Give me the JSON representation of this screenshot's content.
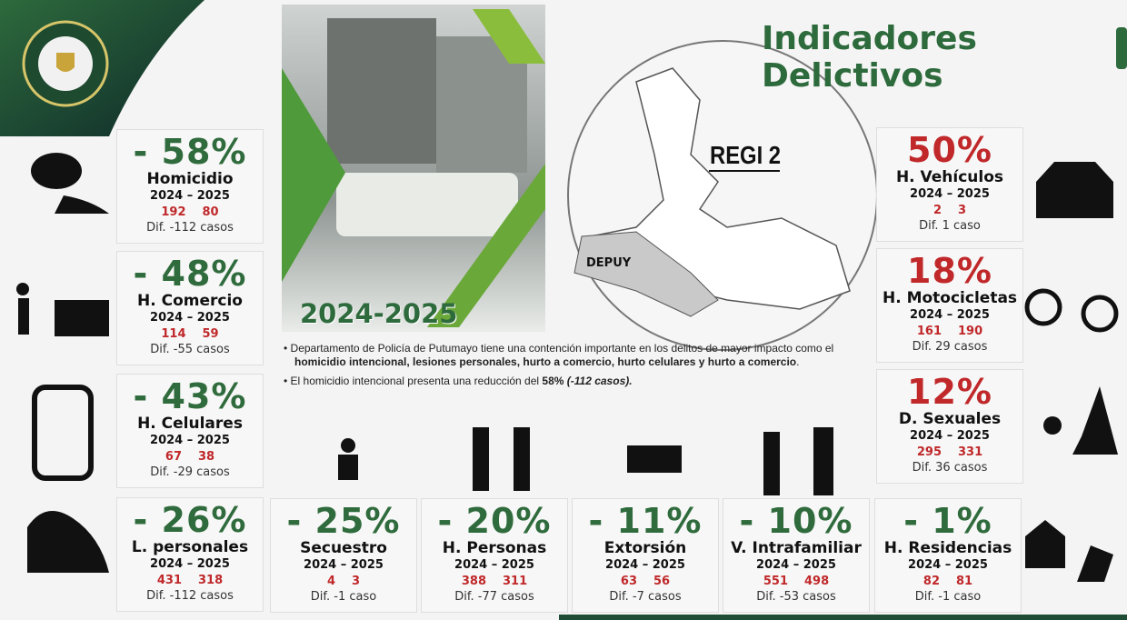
{
  "header": {
    "title": "Indicadores Delictivos"
  },
  "photo": {
    "label": "2024-2025"
  },
  "map": {
    "region_label": "REGI 2",
    "area_label": "DEPUY"
  },
  "bullets": [
    [
      {
        "text": "Departamento de Policía de Putumayo tiene una contención importante en los delitos de mayor impacto como el "
      },
      {
        "text": "homicidio intencional, lesiones personales, hurto a comercio, hurto celulares y hurto a comercio",
        "bold": true
      },
      {
        "text": "."
      }
    ],
    [
      {
        "text": "El homicidio intencional presenta una reducción del "
      },
      {
        "text": "58%",
        "bold": true
      },
      {
        "text": " (-112 casos).",
        "bold": true,
        "italic": true
      }
    ]
  ],
  "cards": [
    {
      "change": "- 58%",
      "name": "Homicidio",
      "period": "2024 – 2025",
      "values": [
        192,
        80
      ],
      "diff": "Dif. -112 casos",
      "color": "#2f6b3c"
    },
    {
      "change": "- 48%",
      "name": "H. Comercio",
      "period": "2024 – 2025",
      "values": [
        114,
        59
      ],
      "diff": "Dif. -55 casos",
      "color": "#2f6b3c"
    },
    {
      "change": "- 43%",
      "name": "H. Celulares",
      "period": "2024 – 2025",
      "values": [
        67,
        38
      ],
      "diff": "Dif. -29 casos",
      "color": "#2f6b3c"
    },
    {
      "change": "- 26%",
      "name": "L. personales",
      "period": "2024 – 2025",
      "values": [
        431,
        318
      ],
      "diff": "Dif. -112 casos",
      "color": "#2f6b3c"
    },
    {
      "change": "- 25%",
      "name": "Secuestro",
      "period": "2024 – 2025",
      "values": [
        4,
        3
      ],
      "diff": "Dif. -1 caso",
      "color": "#2f6b3c"
    },
    {
      "change": "- 20%",
      "name": "H. Personas",
      "period": "2024 – 2025",
      "values": [
        388,
        311
      ],
      "diff": "Dif. -77 casos",
      "color": "#2f6b3c"
    },
    {
      "change": "- 11%",
      "name": "Extorsión",
      "period": "2024 – 2025",
      "values": [
        63,
        56
      ],
      "diff": "Dif. -7 casos",
      "color": "#2f6b3c"
    },
    {
      "change": "- 10%",
      "name": "V. Intrafamiliar",
      "period": "2024 – 2025",
      "values": [
        551,
        498
      ],
      "diff": "Dif. -53 casos",
      "color": "#2f6b3c"
    },
    {
      "change": "- 1%",
      "name": "H. Residencias",
      "period": "2024 – 2025",
      "values": [
        82,
        81
      ],
      "diff": "Dif. -1 caso",
      "color": "#2f6b3c"
    },
    {
      "change": "50%",
      "name": "H. Vehículos",
      "period": "2024 – 2025",
      "values": [
        2,
        3
      ],
      "diff": "Dif. 1 caso",
      "color": "#c0282a"
    },
    {
      "change": "18%",
      "name": "H. Motocicletas",
      "period": "2024 – 2025",
      "values": [
        161,
        190
      ],
      "diff": "Dif. 29 casos",
      "color": "#c0282a"
    },
    {
      "change": "12%",
      "name": "D. Sexuales",
      "period": "2024 – 2025",
      "values": [
        295,
        331
      ],
      "diff": "Dif. 36 casos",
      "color": "#c0282a"
    }
  ]
}
